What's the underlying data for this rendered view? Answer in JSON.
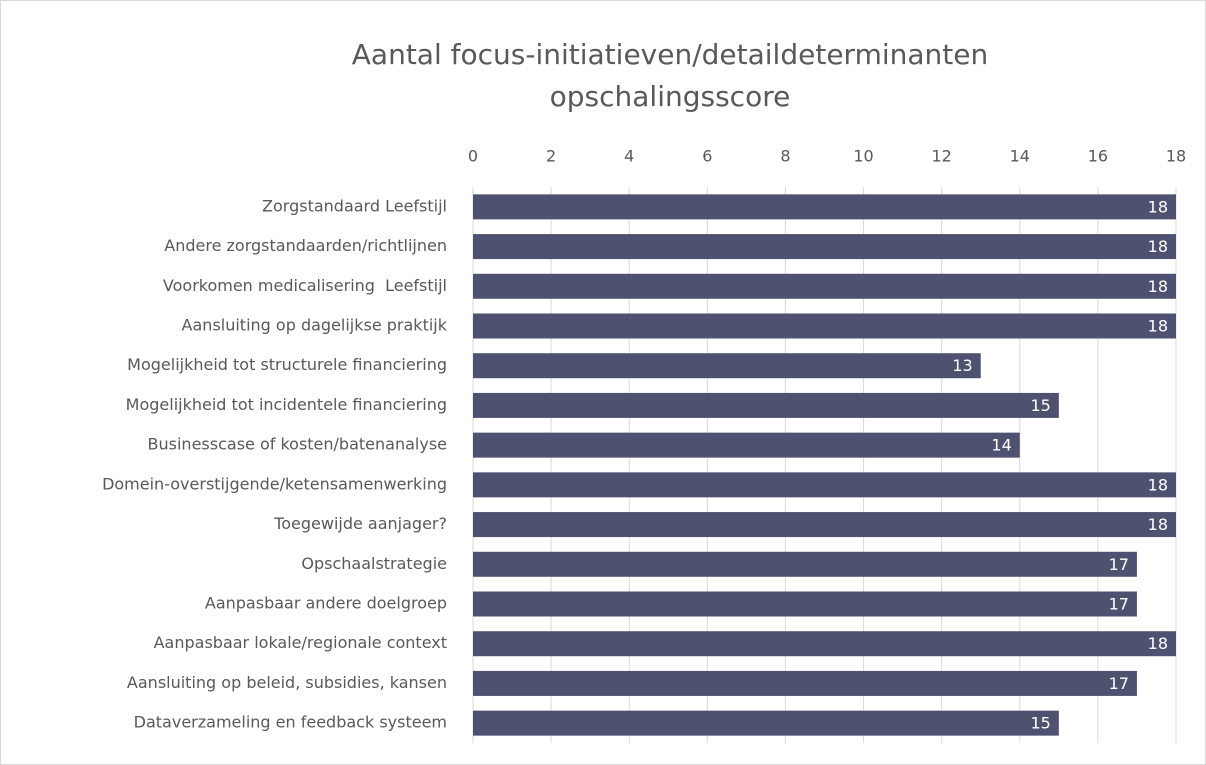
{
  "chart_data": {
    "type": "barh",
    "title": [
      "Aantal focus-initiatieven/detaildeterminanten",
      "opschalingsscore"
    ],
    "categories": [
      "Zorgstandaard Leefstijl",
      "Andere zorgstandaarden/richtlijnen",
      "Voorkomen medicalisering  Leefstijl",
      "Aansluiting op dagelijkse praktijk",
      "Mogelijkheid tot structurele financiering",
      "Mogelijkheid tot incidentele financiering",
      "Businesscase of kosten/batenanalyse",
      "Domein-overstijgende/ketensamenwerking",
      "Toegewijde aanjager?",
      "Opschaalstrategie",
      "Aanpasbaar andere doelgroep",
      "Aanpasbaar lokale/regionale context",
      "Aansluiting op beleid, subsidies, kansen",
      "Dataverzameling en feedback systeem"
    ],
    "values": [
      18,
      18,
      18,
      18,
      13,
      15,
      14,
      18,
      18,
      17,
      17,
      18,
      17,
      15
    ],
    "color": "#4f5170",
    "xlim": [
      0,
      18
    ],
    "xticks": [
      0,
      2,
      4,
      6,
      8,
      10,
      12,
      14,
      16,
      18
    ],
    "grid": true
  }
}
